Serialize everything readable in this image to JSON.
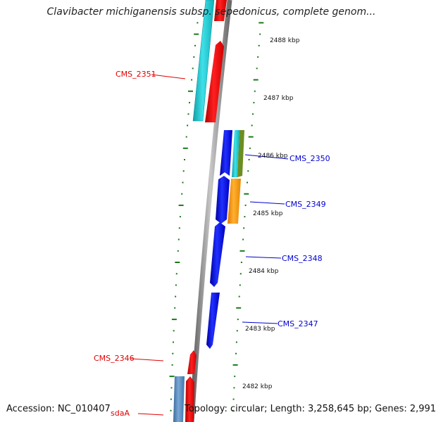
{
  "header": {
    "title": "Clavibacter michiganensis subsp. sepedonicus, complete genom..."
  },
  "footer": {
    "accession": "Accession: NC_010407",
    "topology": "Topology: circular; Length: 3,258,645 bp; Genes: 2,991"
  },
  "scale": {
    "ticks": [
      "2488 kbp",
      "2487 kbp",
      "2486 kbp",
      "2485 kbp",
      "2484 kbp",
      "2483 kbp",
      "2482 kbp"
    ]
  },
  "genes": {
    "labels": [
      {
        "name": "CMS_2351",
        "strand": "reverse"
      },
      {
        "name": "CMS_2350",
        "strand": "forward"
      },
      {
        "name": "CMS_2349",
        "strand": "forward"
      },
      {
        "name": "CMS_2348",
        "strand": "forward"
      },
      {
        "name": "CMS_2347",
        "strand": "forward"
      },
      {
        "name": "CMS_2346",
        "strand": "reverse"
      },
      {
        "name": "sdaA",
        "strand": "reverse"
      }
    ]
  },
  "colors": {
    "reverse_label": "#e00000",
    "forward_label": "#0000d0",
    "reverse_cds": "#ff0000",
    "forward_cds": "#0000ff",
    "cyan_feature": "#1ec8d2",
    "orange_feature": "#ff9a00",
    "olive_feature": "#6b8e23",
    "steel_feature": "#4f7fb0",
    "backbone": "#8c8c8c",
    "tick": "#1a7a1a"
  }
}
